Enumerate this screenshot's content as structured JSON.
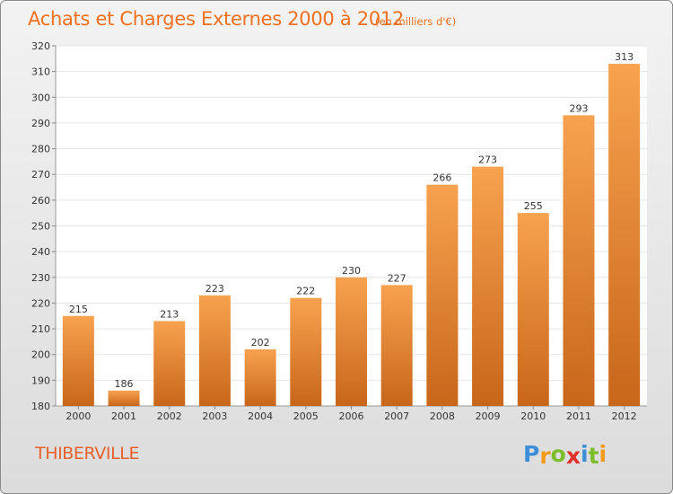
{
  "title": "Achats et Charges Externes 2000 à 2012",
  "subtitle": "(en milliers d'€)",
  "commune": "THIBERVILLE",
  "logo": {
    "text": "Proxiti",
    "letters": [
      "P",
      "r",
      "o",
      "x",
      "i",
      "t",
      "i"
    ],
    "colors": [
      "#3a8fd6",
      "#f29a1a",
      "#7bbd2a",
      "#e0312b",
      "#3a8fd6",
      "#7bbd2a",
      "#f29a1a"
    ]
  },
  "colors": {
    "accent": "#f07020",
    "bar_light": "#f7a24f",
    "bar_dark": "#c8661a",
    "plot_bg": "#ffffff",
    "grid": "#e6e6e6"
  },
  "chart_data": {
    "type": "bar",
    "title": "Achats et Charges Externes 2000 à 2012",
    "subtitle": "(en milliers d'€)",
    "categories": [
      "2000",
      "2001",
      "2002",
      "2003",
      "2004",
      "2005",
      "2006",
      "2007",
      "2008",
      "2009",
      "2010",
      "2011",
      "2012"
    ],
    "values": [
      215,
      186,
      213,
      223,
      202,
      222,
      230,
      227,
      266,
      273,
      255,
      293,
      313
    ],
    "ylim": [
      180,
      320
    ],
    "yticks": [
      180,
      190,
      200,
      210,
      220,
      230,
      240,
      250,
      260,
      270,
      280,
      290,
      300,
      310,
      320
    ],
    "grid": true,
    "data_labels": true,
    "legend": "none"
  }
}
